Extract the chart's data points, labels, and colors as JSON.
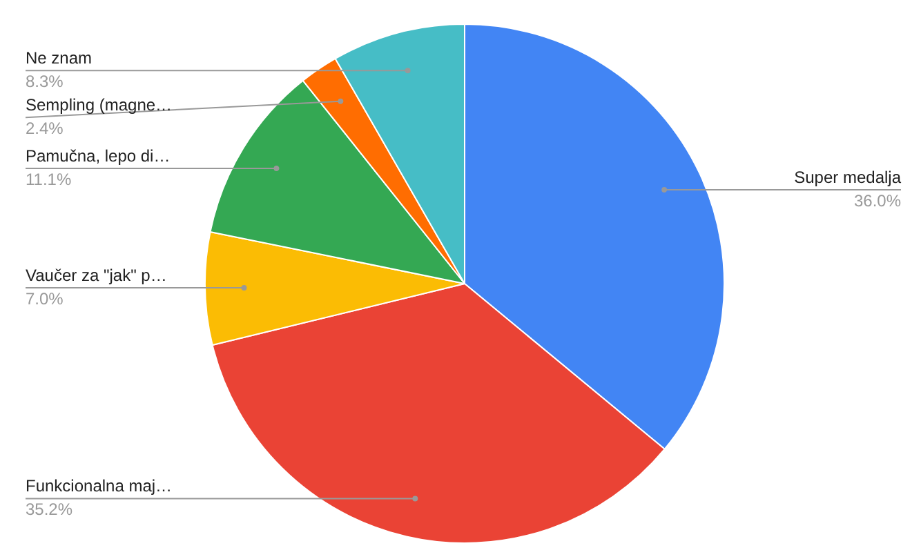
{
  "chart_data": {
    "type": "pie",
    "categories": [
      "Super medalja",
      "Funkcionalna maj…",
      "Vaučer za \"jak\" p…",
      "Pamučna, lepo di…",
      "Sempling (magne…",
      "Ne znam"
    ],
    "values": [
      36.0,
      35.2,
      7.0,
      11.1,
      2.4,
      8.3
    ],
    "colors": [
      "#4285f4",
      "#ea4335",
      "#fbbc04",
      "#34a853",
      "#ff6d01",
      "#46bdc6"
    ],
    "value_labels": [
      "36.0%",
      "35.2%",
      "7.0%",
      "11.1%",
      "2.4%",
      "8.3%"
    ]
  }
}
